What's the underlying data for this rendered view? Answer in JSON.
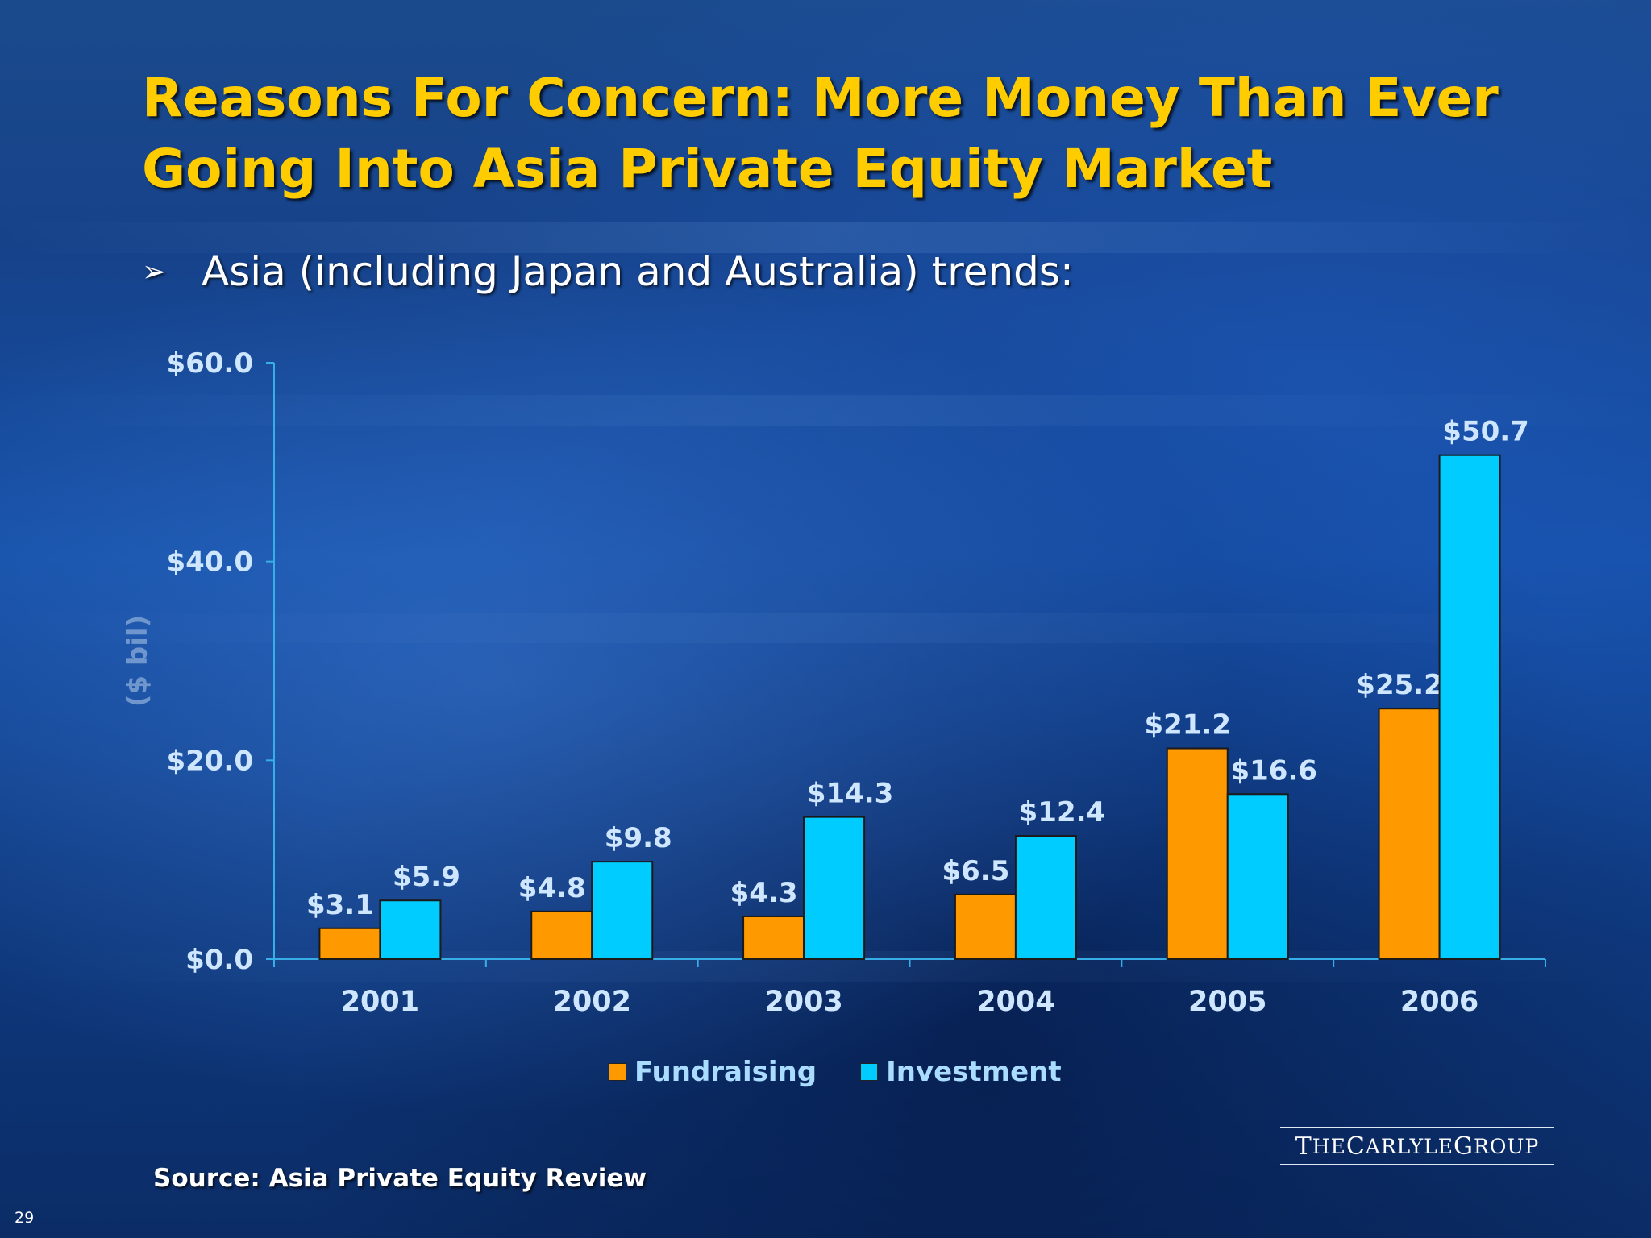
{
  "slide": {
    "title_line1": "Reasons For Concern: More Money Than Ever",
    "title_line2": "Going Into Asia Private Equity Market",
    "bullet_icon": "right-arrowhead-icon",
    "bullet_text": "Asia (including Japan and Australia) trends:",
    "source": "Source: Asia Private Equity Review",
    "logo_parts": [
      "T",
      "HE ",
      "C",
      "ARLYLE ",
      "G",
      "ROUP"
    ],
    "page_number": "29"
  },
  "colors": {
    "title": "#ffcc00",
    "fundraising": "#ff9900",
    "investment": "#00ccff",
    "axis": "#37aee8",
    "axis_text": "#cfe6ff",
    "data_label": "#cfe6ff",
    "legend_text": "#a9dcff"
  },
  "chart_data": {
    "type": "bar",
    "categories": [
      "2001",
      "2002",
      "2003",
      "2004",
      "2005",
      "2006"
    ],
    "series": [
      {
        "name": "Fundraising",
        "values": [
          3.1,
          4.8,
          4.3,
          6.5,
          21.2,
          25.2
        ],
        "color": "#ff9900"
      },
      {
        "name": "Investment",
        "values": [
          5.9,
          9.8,
          14.3,
          12.4,
          16.6,
          50.7
        ],
        "color": "#00ccff"
      }
    ],
    "data_labels": [
      [
        "$3.1",
        "$4.8",
        "$4.3",
        "$6.5",
        "$21.2",
        "$25.2"
      ],
      [
        "$5.9",
        "$9.8",
        "$14.3",
        "$12.4",
        "$16.6",
        "$50.7"
      ]
    ],
    "y_ticks": [
      0,
      20,
      40,
      60
    ],
    "y_tick_labels": [
      "$0.0",
      "$20.0",
      "$40.0",
      "$60.0"
    ],
    "ylim": [
      0,
      60
    ],
    "ylabel": "($ bil)",
    "xlabel": "",
    "legend": [
      "Fundraising",
      "Investment"
    ],
    "legend_position": "bottom",
    "grid": false
  }
}
